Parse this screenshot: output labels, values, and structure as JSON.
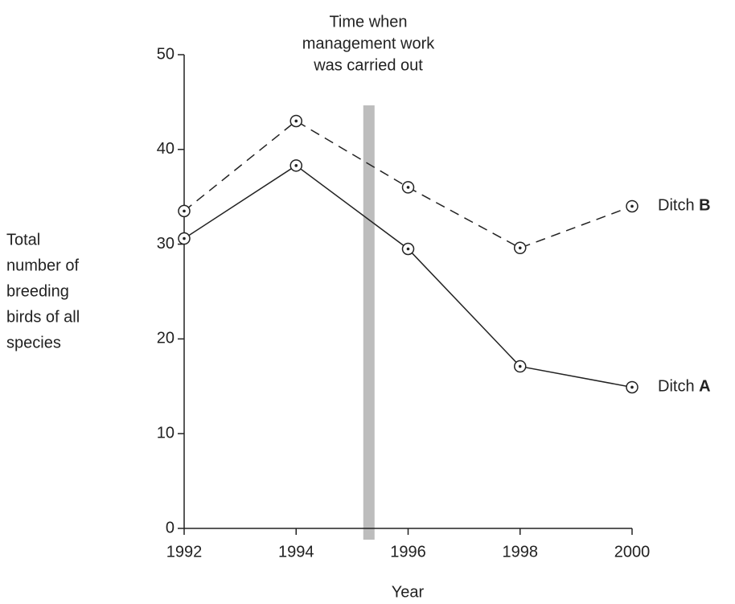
{
  "chart_data": {
    "type": "line",
    "annotation_lines": [
      "Time when",
      "management work",
      "was carried out"
    ],
    "annotation_x": 1995.3,
    "annotation_color": "#bdbdbd",
    "x_label": "Year",
    "y_label_lines": [
      "Total",
      "number of",
      "breeding",
      "birds of all",
      "species"
    ],
    "x": [
      1992,
      1994,
      1996,
      1998,
      2000
    ],
    "xlim": [
      1992,
      2000
    ],
    "xticks": [
      1992,
      1994,
      1996,
      1998,
      2000
    ],
    "ylim": [
      0,
      50
    ],
    "yticks": [
      0,
      10,
      20,
      30,
      40,
      50
    ],
    "grid": false,
    "series": [
      {
        "name": "Ditch A",
        "color": "#222222",
        "line_style": "solid",
        "values": [
          30.6,
          38.3,
          29.5,
          17.1,
          14.9
        ]
      },
      {
        "name": "Ditch B",
        "color": "#222222",
        "line_style": "dashed",
        "values": [
          33.5,
          43.0,
          36.0,
          29.6,
          34.0
        ]
      }
    ]
  }
}
